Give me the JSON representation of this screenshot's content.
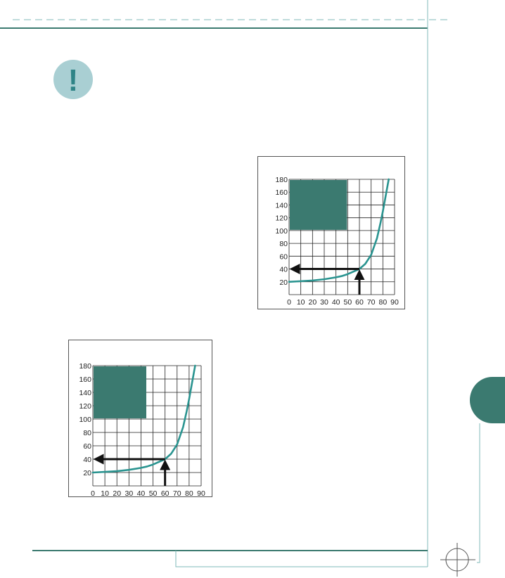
{
  "colors": {
    "accent": "#3b7a70",
    "curve": "#2a9490",
    "icon_bg": "#a9cfd3",
    "icon_glyph": "#2f8487",
    "rule": "#7fb8b8",
    "grid": "#222222",
    "arrow": "#111111"
  },
  "callout": {
    "icon": "exclamation-icon",
    "glyph": "!"
  },
  "chart_data": [
    {
      "type": "line",
      "title": "",
      "xlabel": "",
      "ylabel": "",
      "xlim": [
        0,
        90
      ],
      "ylim": [
        0,
        180
      ],
      "x_ticks": [
        "0",
        "10",
        "20",
        "30",
        "40",
        "50",
        "60",
        "70",
        "80",
        "90"
      ],
      "y_ticks": [
        "180",
        "160",
        "140",
        "120",
        "100",
        "80",
        "60",
        "40",
        "20"
      ],
      "grid": true,
      "legend": "none",
      "series": [
        {
          "x": [
            0,
            10,
            20,
            30,
            40,
            45,
            50,
            55,
            60,
            65,
            70,
            75,
            78,
            80,
            82,
            84,
            85
          ],
          "y": [
            20,
            21,
            22,
            24,
            27,
            29,
            32,
            36,
            40,
            48,
            62,
            88,
            112,
            130,
            150,
            170,
            180
          ]
        }
      ],
      "annotations": [
        {
          "type": "arrow",
          "from": [
            60,
            0
          ],
          "to": [
            60,
            40
          ]
        },
        {
          "type": "arrow",
          "from": [
            60,
            40
          ],
          "to": [
            0,
            40
          ]
        },
        {
          "type": "box",
          "x": [
            0,
            50
          ],
          "y": [
            100,
            180
          ]
        }
      ]
    },
    {
      "type": "line",
      "title": "",
      "xlabel": "",
      "ylabel": "",
      "xlim": [
        0,
        90
      ],
      "ylim": [
        0,
        180
      ],
      "x_ticks": [
        "0",
        "10",
        "20",
        "30",
        "40",
        "50",
        "60",
        "70",
        "80",
        "90"
      ],
      "y_ticks": [
        "180",
        "160",
        "140",
        "120",
        "100",
        "80",
        "60",
        "40",
        "20"
      ],
      "grid": true,
      "legend": "none",
      "series": [
        {
          "x": [
            0,
            10,
            20,
            30,
            40,
            45,
            50,
            55,
            60,
            65,
            70,
            75,
            78,
            80,
            82,
            84,
            85
          ],
          "y": [
            20,
            21,
            22,
            24,
            27,
            29,
            32,
            36,
            40,
            48,
            62,
            88,
            112,
            130,
            150,
            170,
            180
          ]
        }
      ],
      "annotations": [
        {
          "type": "arrow",
          "from": [
            60,
            0
          ],
          "to": [
            60,
            40
          ]
        },
        {
          "type": "arrow",
          "from": [
            60,
            40
          ],
          "to": [
            0,
            40
          ]
        },
        {
          "type": "box",
          "x": [
            0,
            45
          ],
          "y": [
            100,
            180
          ]
        }
      ]
    }
  ]
}
